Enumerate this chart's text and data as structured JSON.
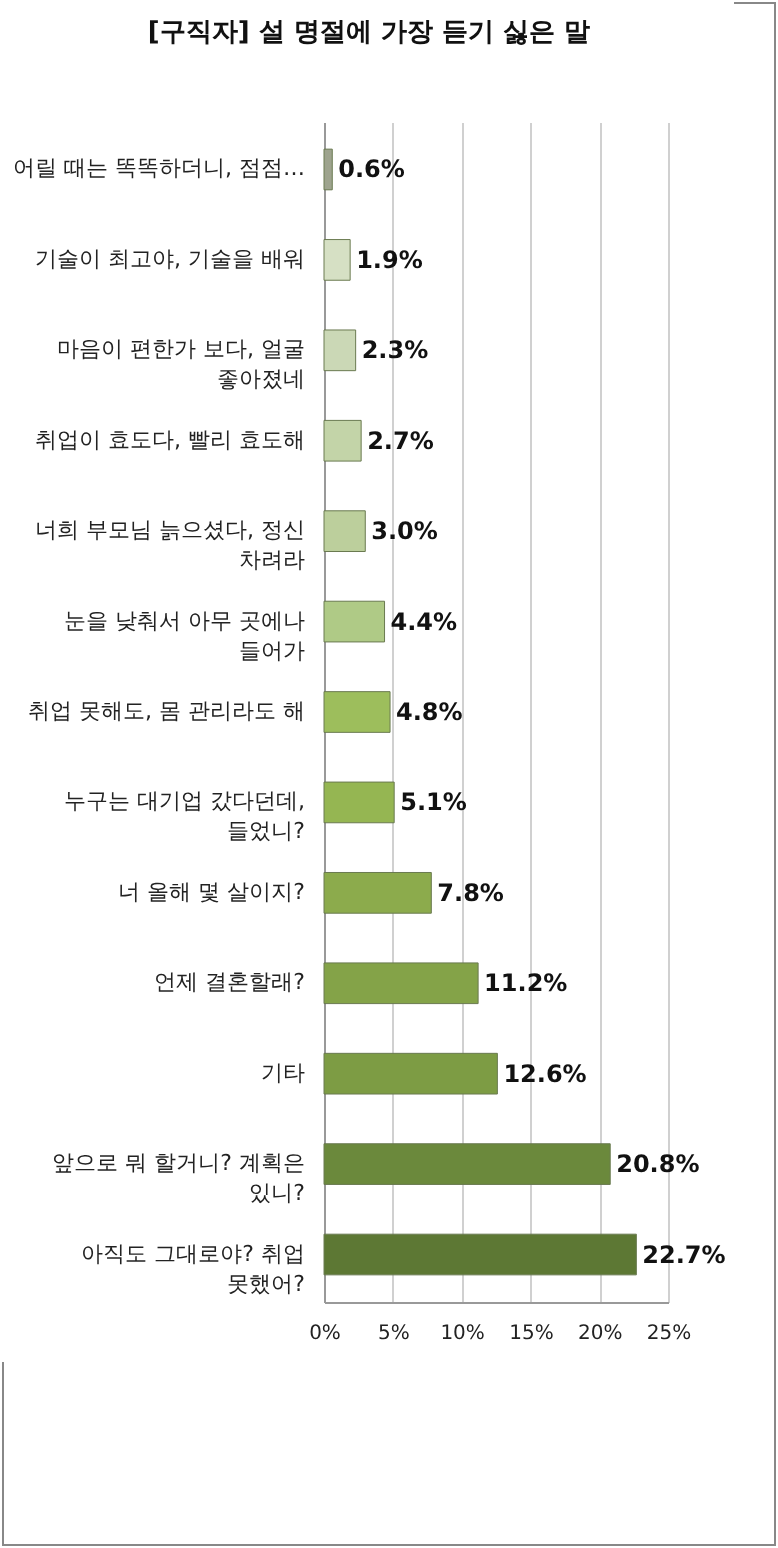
{
  "chart_data": {
    "type": "bar",
    "orientation": "horizontal",
    "title": "[구직자] 설 명절에 가장 듣기 싫은 말",
    "categories": [
      "어릴 때는 똑똑하더니, 점점…",
      "기술이 최고야, 기술을 배워",
      "마음이 편한가 보다, 얼굴 좋아졌네",
      "취업이 효도다, 빨리 효도해",
      "너희 부모님 늙으셨다, 정신 차려라",
      "눈을 낮춰서 아무 곳에나 들어가",
      "취업 못해도, 몸 관리라도 해",
      "누구는 대기업 갔다던데, 들었니?",
      "너 올해 몇 살이지?",
      "언제 결혼할래?",
      "기타",
      "앞으로 뭐 할거니? 계획은 있니?",
      "아직도 그대로야? 취업 못했어?"
    ],
    "values": [
      0.6,
      1.9,
      2.3,
      2.7,
      3.0,
      4.4,
      4.8,
      5.1,
      7.8,
      11.2,
      12.6,
      20.8,
      22.7
    ],
    "value_labels": [
      "0.6%",
      "1.9%",
      "2.3%",
      "2.7%",
      "3.0%",
      "4.4%",
      "4.8%",
      "5.1%",
      "7.8%",
      "11.2%",
      "12.6%",
      "20.8%",
      "22.7%"
    ],
    "colors": [
      "#9ea48e",
      "#d6e0c4",
      "#cbd8b6",
      "#c3d4a8",
      "#bccf9c",
      "#afca86",
      "#9dbe5c",
      "#95b652",
      "#8cab4c",
      "#84a348",
      "#7d9c44",
      "#6b893c",
      "#5d7834"
    ],
    "xlim": [
      0,
      25
    ],
    "xticks": [
      {
        "value": 0,
        "label": "0%"
      },
      {
        "value": 5,
        "label": "5%"
      },
      {
        "value": 10,
        "label": "10%"
      },
      {
        "value": 15,
        "label": "15%"
      },
      {
        "value": 20,
        "label": "20%"
      },
      {
        "value": 25,
        "label": "25%"
      }
    ],
    "grid": "x",
    "legend": false
  }
}
